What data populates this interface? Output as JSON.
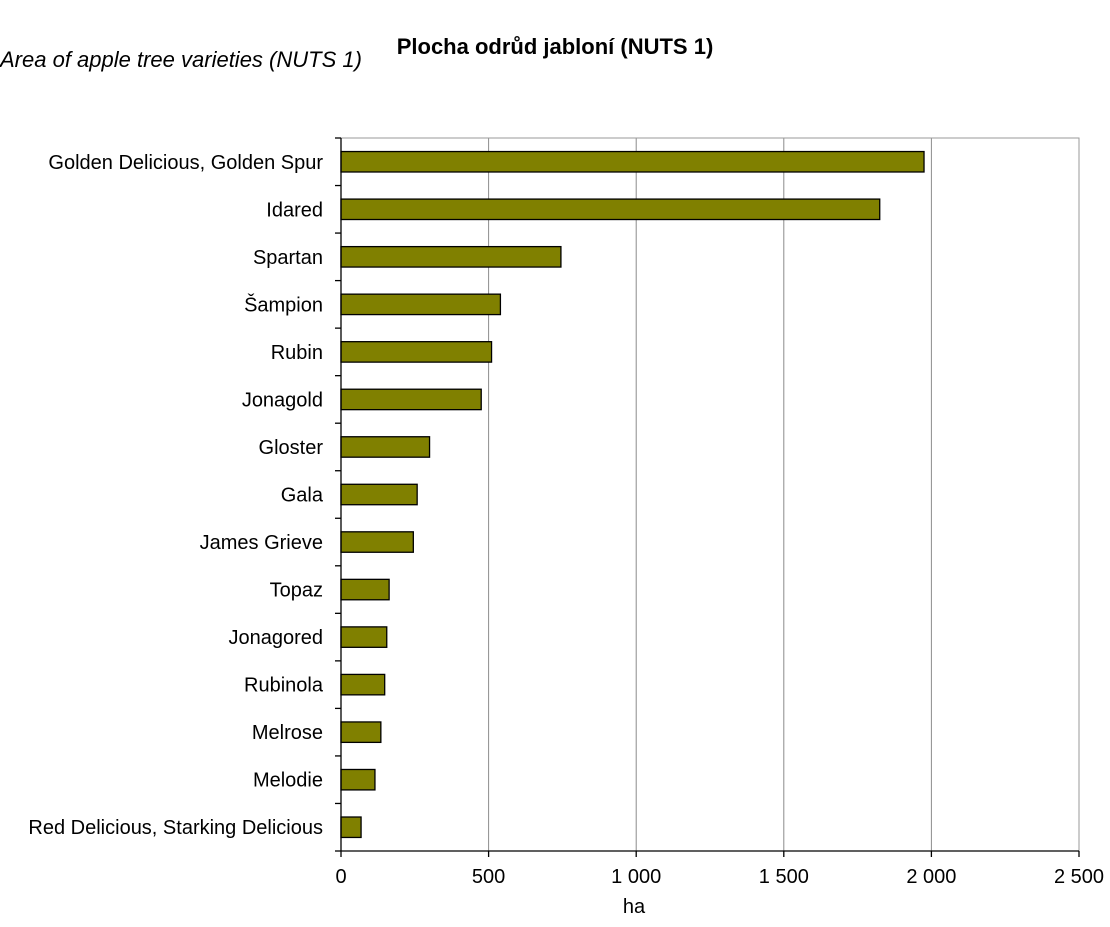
{
  "chart_data": {
    "type": "bar",
    "orientation": "horizontal",
    "title": "Plocha odrůd jabloní (NUTS 1)",
    "subtitle": "Area of apple tree varieties (NUTS 1)",
    "xlabel": "ha",
    "ylabel": "",
    "xlim": [
      0,
      2500
    ],
    "x_ticks": [
      0,
      500,
      1000,
      1500,
      2000,
      2500
    ],
    "x_tick_labels": [
      "0",
      "500",
      "1 000",
      "1 500",
      "2 000",
      "2 500"
    ],
    "grid": "vertical",
    "bar_color": "#808000",
    "categories": [
      "Golden Delicious, Golden Spur",
      "Idared",
      "Spartan",
      "Šampion",
      "Rubin",
      "Jonagold",
      "Gloster",
      "Gala",
      "James Grieve",
      "Topaz",
      "Jonagored",
      "Rubinola",
      "Melrose",
      "Melodie",
      "Red Delicious, Starking Delicious"
    ],
    "values": [
      1975,
      1825,
      745,
      540,
      510,
      475,
      300,
      258,
      245,
      163,
      155,
      148,
      135,
      115,
      68
    ]
  }
}
